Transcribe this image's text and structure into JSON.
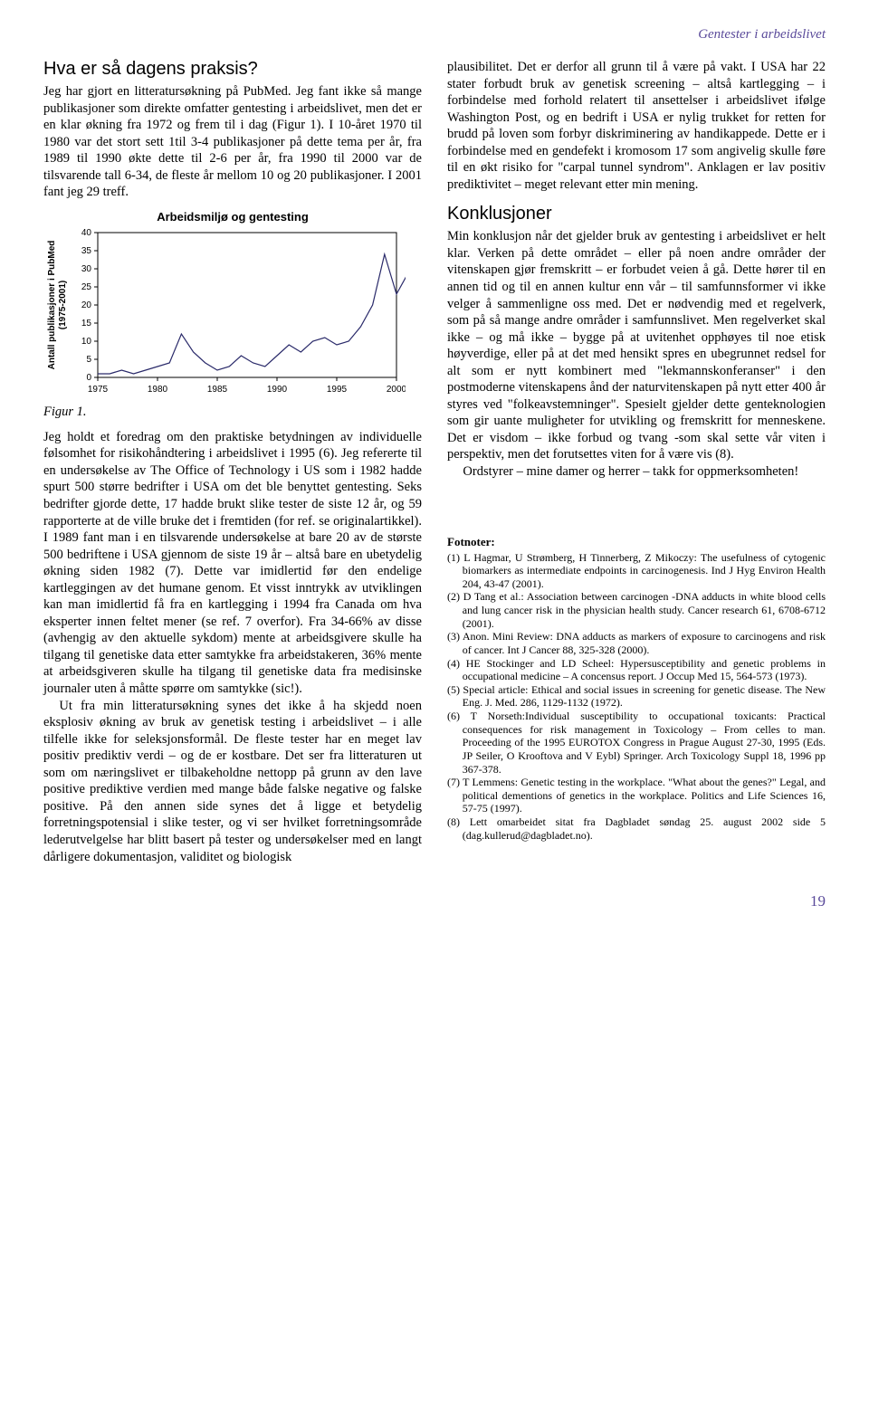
{
  "header": {
    "running_title": "Gentester i arbeidslivet"
  },
  "left": {
    "heading": "Hva er så dagens praksis?",
    "p1": "Jeg har gjort en litteratursøkning på PubMed. Jeg fant ikke så mange publikasjoner som direkte omfatter gentesting i arbeidslivet, men det er en klar økning fra 1972 og frem til i dag (Figur 1). I 10-året 1970 til 1980 var det stort sett 1til 3-4 publikasjoner på dette tema per år, fra 1989 til 1990 økte dette til 2-6 per år, fra 1990 til 2000 var de tilsvarende tall 6-34, de fleste år mellom 10 og 20 publikasjoner. I 2001 fant jeg 29 treff.",
    "chart": {
      "type": "line",
      "title": "Arbeidsmiljø og gentesting",
      "xlabel": "",
      "ylabel": "Antall publikasjoner i PubMed\n(1975-2001)",
      "label_fontsize": 10,
      "title_fontsize": 13,
      "xlim": [
        1975,
        2000
      ],
      "ylim": [
        0,
        40
      ],
      "xticks": [
        1975,
        1980,
        1985,
        1990,
        1995,
        2000
      ],
      "yticks": [
        0,
        5,
        10,
        15,
        20,
        25,
        30,
        35,
        40
      ],
      "line_color": "#2a2a6a",
      "grid_color": "none",
      "background_color": "#ffffff",
      "axis_color": "#000000",
      "line_width": 1.2,
      "data": [
        {
          "x": 1975,
          "y": 1
        },
        {
          "x": 1976,
          "y": 1
        },
        {
          "x": 1977,
          "y": 2
        },
        {
          "x": 1978,
          "y": 1
        },
        {
          "x": 1979,
          "y": 2
        },
        {
          "x": 1980,
          "y": 3
        },
        {
          "x": 1981,
          "y": 4
        },
        {
          "x": 1982,
          "y": 12
        },
        {
          "x": 1983,
          "y": 7
        },
        {
          "x": 1984,
          "y": 4
        },
        {
          "x": 1985,
          "y": 2
        },
        {
          "x": 1986,
          "y": 3
        },
        {
          "x": 1987,
          "y": 6
        },
        {
          "x": 1988,
          "y": 4
        },
        {
          "x": 1989,
          "y": 3
        },
        {
          "x": 1990,
          "y": 6
        },
        {
          "x": 1991,
          "y": 9
        },
        {
          "x": 1992,
          "y": 7
        },
        {
          "x": 1993,
          "y": 10
        },
        {
          "x": 1994,
          "y": 11
        },
        {
          "x": 1995,
          "y": 9
        },
        {
          "x": 1996,
          "y": 10
        },
        {
          "x": 1997,
          "y": 14
        },
        {
          "x": 1998,
          "y": 20
        },
        {
          "x": 1999,
          "y": 34
        },
        {
          "x": 2000,
          "y": 23
        },
        {
          "x": 2001,
          "y": 29
        }
      ]
    },
    "figcaption": "Figur 1.",
    "p2": "Jeg holdt et foredrag om den praktiske betydningen av individuelle følsomhet for risikohåndtering i arbeidslivet i 1995 (6). Jeg refererte til en undersøkelse av The Office of Technology i US som i 1982 hadde spurt 500 større bedrifter i USA om det ble benyttet gentesting. Seks bedrifter gjorde dette, 17 hadde brukt slike tester de siste 12 år, og 59 rapporterte at de ville bruke det i fremtiden (for ref. se originalartikkel). I 1989 fant man i en tilsvarende undersøkelse at bare 20 av de største 500 bedriftene i USA gjennom de siste 19 år – altså bare en ubetydelig økning siden 1982 (7). Dette var imidlertid før den endelige kartleggingen av det humane genom. Et visst inntrykk av utviklingen kan man imidlertid få fra en kartlegging i 1994 fra Canada om hva eksperter innen feltet mener (se ref. 7 overfor). Fra 34-66% av disse (avhengig av den aktuelle sykdom) mente at arbeidsgivere skulle ha tilgang til genetiske data etter samtykke fra arbeidstakeren, 36% mente at arbeidsgiveren skulle ha tilgang til genetiske data fra medisinske journaler uten å måtte spørre om samtykke (sic!).",
    "p3": "Ut fra min litteratursøkning synes det ikke å ha skjedd noen eksplosiv økning av bruk av genetisk testing i arbeidslivet – i alle tilfelle ikke for seleksjonsformål. De fleste tester har en meget lav positiv prediktiv verdi – og de er kostbare. Det ser fra litteraturen ut som om næringslivet er tilbakeholdne nettopp på grunn av den lave positive prediktive verdien med mange både falske negative og falske positive. På den annen side synes det å ligge et betydelig forretningspotensial i slike tester, og vi ser hvilket forretningsområde lederutvelgelse har blitt basert på tester og undersøkelser med en langt dårligere dokumentasjon, validitet og biologisk"
  },
  "right": {
    "p1": "plausibilitet. Det er derfor all grunn til å være på vakt. I USA har 22 stater forbudt bruk av genetisk screening – altså kartlegging – i forbindelse med forhold relatert til ansettelser i arbeidslivet ifølge Washington Post, og en bedrift i USA er nylig trukket for retten for brudd på loven som forbyr diskriminering av handikappede. Dette er i forbindelse med en gendefekt i kromosom 17 som angivelig skulle føre til en økt risiko for \"carpal tunnel syndrom\". Anklagen er lav positiv prediktivitet – meget relevant etter min mening.",
    "heading": "Konklusjoner",
    "p2": "Min konklusjon når det gjelder bruk av gentesting i arbeidslivet er helt klar. Verken på dette området – eller på noen andre områder der vitenskapen gjør fremskritt – er forbudet veien å gå. Dette hører til en annen tid og til en annen kultur enn vår – til samfunnsformer vi ikke velger å sammenligne oss med. Det er nødvendig med et regelverk, som på så mange andre områder i samfunnslivet. Men regelverket skal ikke – og må ikke – bygge på at uvitenhet opphøyes til noe etisk høyverdige, eller på at det med hensikt spres en ubegrunnet redsel for alt som er nytt kombinert med \"lekmannskonferanser\" i den postmoderne vitenskapens ånd der naturvitenskapen på nytt etter 400 år styres ved \"folkeavstemninger\". Spesielt gjelder dette genteknologien som gir uante muligheter for utvikling og fremskritt for menneskene. Det er visdom – ikke forbud og tvang -som skal sette vår viten i perspektiv, men det forutsettes viten for å være vis (8).",
    "p3": "Ordstyrer – mine damer og herrer – takk for oppmerksomheten!",
    "footnotes_head": "Fotnoter:",
    "footnotes": [
      "(1) L Hagmar, U Strømberg, H Tinnerberg, Z Mikoczy: The usefulness of cytogenic biomarkers as intermediate endpoints in carcinogenesis. Ind J Hyg Environ Health 204, 43-47 (2001).",
      "(2) D Tang et al.: Association between carcinogen -DNA adducts in white blood cells and lung cancer risk in the physician health study. Cancer research 61, 6708-6712 (2001).",
      "(3) Anon. Mini Review: DNA adducts as markers of exposure to carcinogens and risk of cancer. Int J Cancer 88, 325-328 (2000).",
      "(4) HE Stockinger and LD Scheel: Hypersusceptibility and genetic problems in occupational medicine – A concensus report. J Occup Med 15, 564-573 (1973).",
      "(5) Special article: Ethical and social issues in screening for genetic disease. The New Eng. J. Med. 286, 1129-1132 (1972).",
      "(6) T Norseth:Individual susceptibility to occupational toxicants: Practical consequences for risk management in Toxicology – From celles to man. Proceeding of the 1995 EUROTOX Congress in Prague August 27-30, 1995 (Eds. JP Seiler, O Krooftova and V Eybl) Springer. Arch Toxicology Suppl 18, 1996 pp 367-378.",
      "(7) T Lemmens: Genetic testing in the workplace. \"What about the genes?\" Legal, and political dementions of genetics in the workplace. Politics and Life Sciences 16, 57-75 (1997).",
      "(8) Lett omarbeidet sitat fra Dagbladet søndag 25. august 2002 side 5 (dag.kullerud@dagbladet.no)."
    ]
  },
  "page_number": "19"
}
